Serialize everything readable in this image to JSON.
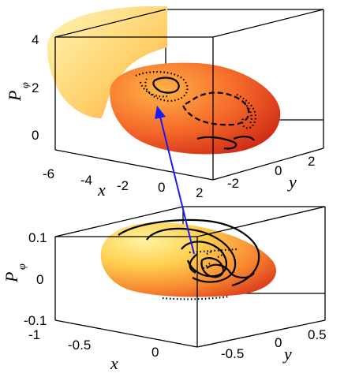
{
  "top_panel": {
    "z_axis_label": "P",
    "z_axis_subscript": "φ",
    "x_axis_label": "x",
    "y_axis_label": "y",
    "z_ticks": [
      "4",
      "2",
      "0"
    ],
    "x_ticks": [
      "-6",
      "-4",
      "-2",
      "0",
      "2"
    ],
    "y_ticks": [
      "-2",
      "0",
      "2"
    ]
  },
  "bottom_panel": {
    "z_axis_label": "P",
    "z_axis_subscript": "φ",
    "x_axis_label": "x",
    "y_axis_label": "y",
    "z_ticks": [
      "0.1",
      "0",
      "-0.1"
    ],
    "x_ticks": [
      "-1",
      "-0.5",
      "0"
    ],
    "y_ticks": [
      "-0.5",
      "0",
      "0.5"
    ]
  },
  "colors": {
    "surface_light": "#fff2a8",
    "surface_mid": "#ffb347",
    "surface_dark": "#e8401e",
    "arrow": "#1a1aff",
    "box": "#000000"
  }
}
